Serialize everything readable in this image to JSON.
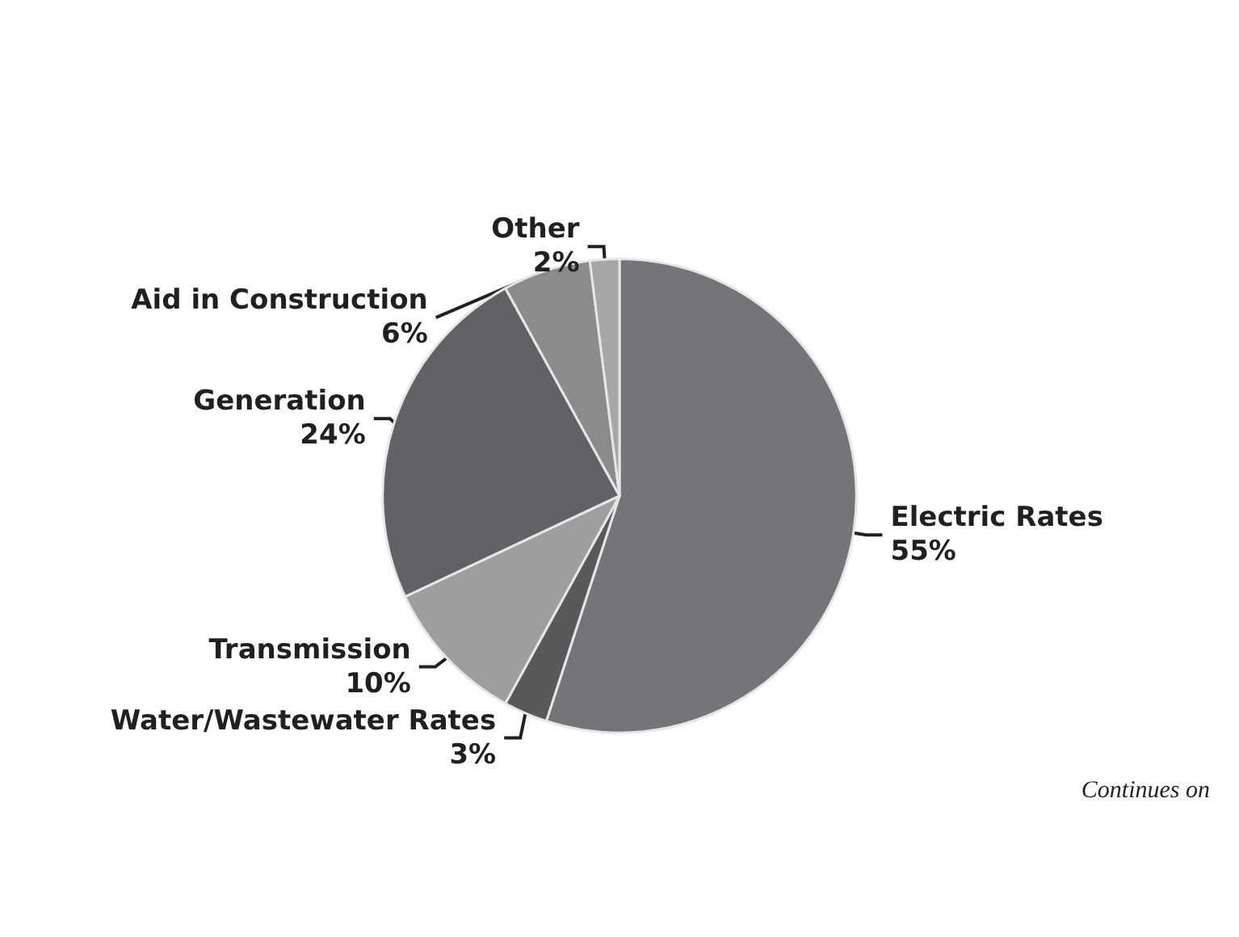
{
  "chart_data": {
    "type": "pie",
    "categories": [
      "Electric Rates",
      "Water/Wastewater Rates",
      "Transmission",
      "Generation",
      "Aid in Construction",
      "Other"
    ],
    "values": [
      55,
      3,
      10,
      24,
      6,
      2
    ],
    "value_labels": [
      "55%",
      "3%",
      "10%",
      "24%",
      "6%",
      "2%"
    ],
    "colors": [
      "#747578",
      "#58595b",
      "#9d9ea0",
      "#616265",
      "#8a8b8d",
      "#a5a6a8"
    ],
    "annotations": [
      "Continues on"
    ]
  }
}
